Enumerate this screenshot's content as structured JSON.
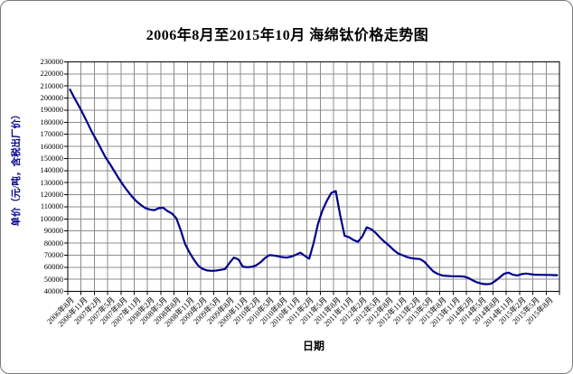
{
  "chart_data": {
    "type": "line",
    "title": "2006年8月至2015年10月 海绵钛价格走势图",
    "xlabel": "日期",
    "ylabel": "单价（元/吨，含税出厂价）",
    "ylim": [
      40000,
      230000
    ],
    "y_tick_step": 10000,
    "y_ticks": [
      230000,
      220000,
      210000,
      200000,
      190000,
      180000,
      170000,
      160000,
      150000,
      140000,
      130000,
      120000,
      110000,
      100000,
      90000,
      80000,
      70000,
      60000,
      50000,
      40000
    ],
    "x_tick_labels": [
      "2006年8月",
      "2006年11月",
      "2007年2月",
      "2007年5月",
      "2007年8月",
      "2007年11月",
      "2008年2月",
      "2008年5月",
      "2008年8月",
      "2008年11月",
      "2009年2月",
      "2009年5月",
      "2009年8月",
      "2009年11月",
      "2010年2月",
      "2010年5月",
      "2010年8月",
      "2010年11月",
      "2011年2月",
      "2011年5月",
      "2011年8月",
      "2011年11月",
      "2012年2月",
      "2012年5月",
      "2012年8月",
      "2012年11月",
      "2013年2月",
      "2013年5月",
      "2013年8月",
      "2013年11月",
      "2014年2月",
      "2014年5月",
      "2014年8月",
      "2014年11月",
      "2015年2月",
      "2015年5月",
      "2015年8月"
    ],
    "x_label_interval_months": 3,
    "start_month": "2006年8月",
    "end_month": "2015年10月",
    "grid": true,
    "legend": false,
    "series": [
      {
        "values": [
          207000,
          200000,
          193500,
          186500,
          179000,
          171500,
          165000,
          158000,
          151000,
          145500,
          139500,
          133500,
          128000,
          123000,
          118500,
          114500,
          111500,
          109000,
          107800,
          107200,
          108800,
          109300,
          106500,
          104500,
          100500,
          90500,
          79000,
          72000,
          66000,
          61000,
          58500,
          57300,
          57000,
          57200,
          57800,
          58500,
          63500,
          68000,
          66500,
          60500,
          60000,
          60300,
          61500,
          64000,
          67500,
          70000,
          69700,
          69000,
          68300,
          68000,
          68800,
          70300,
          72000,
          69500,
          67000,
          80000,
          96000,
          107000,
          115000,
          121500,
          123000,
          103000,
          86000,
          84800,
          82500,
          81000,
          85500,
          93000,
          91500,
          88500,
          84500,
          81000,
          78000,
          74500,
          71500,
          70000,
          68500,
          67500,
          67000,
          66800,
          64500,
          60500,
          56500,
          54500,
          53200,
          52800,
          52600,
          52500,
          52400,
          52200,
          51000,
          49000,
          47300,
          46300,
          45900,
          46200,
          48500,
          51500,
          54500,
          55500,
          53800,
          53200,
          54300,
          54700,
          54200,
          53800,
          53700,
          53600,
          53600,
          53500,
          53400
        ]
      }
    ],
    "colors": {
      "line": "#00008B",
      "grid": "#8c8c8c",
      "axis": "#000000",
      "y_axis_title": "#00008B",
      "background": "#FFFFFF"
    }
  }
}
